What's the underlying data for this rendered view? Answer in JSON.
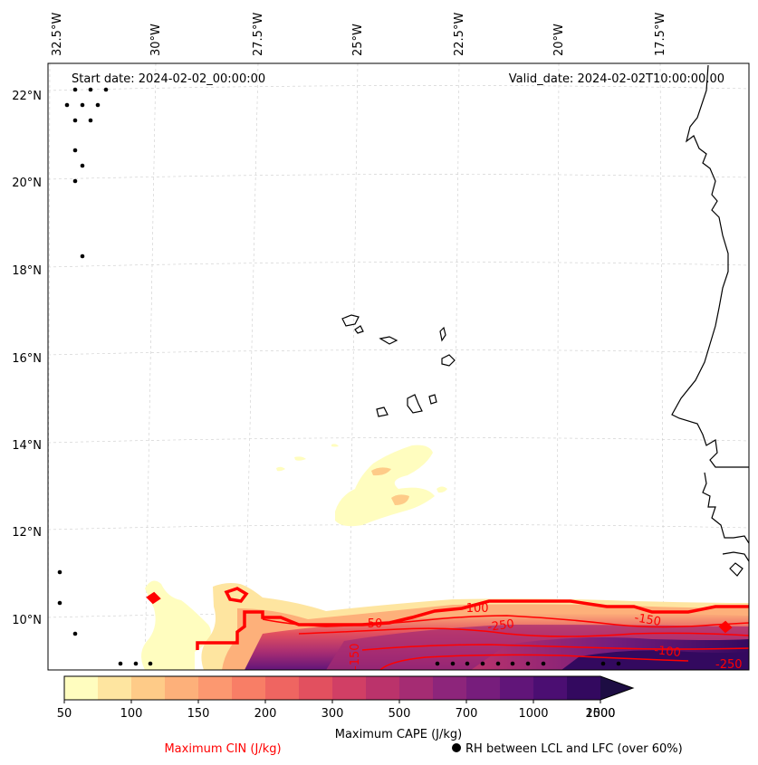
{
  "header": {
    "start_date": "Start date: 2024-02-02_00:00:00",
    "valid_date": "Valid_date: 2024-02-02T10:00:00.00"
  },
  "axes": {
    "lon_labels": [
      "32.5°W",
      "30°W",
      "27.5°W",
      "25°W",
      "22.5°W",
      "20°W",
      "17.5°W"
    ],
    "lat_labels": [
      "22°N",
      "20°N",
      "18°N",
      "16°N",
      "14°N",
      "12°N",
      "10°N"
    ]
  },
  "contour_labels": [
    "-100",
    "-50",
    "-250",
    "-150",
    "-150",
    "-100",
    "-250"
  ],
  "colorbar": {
    "ticks": [
      "50",
      "100",
      "150",
      "200",
      "300",
      "500",
      "700",
      "1000",
      "1500",
      "2000"
    ],
    "colors": [
      "#fffdbf",
      "#fee5a0",
      "#fecb88",
      "#fdb07a",
      "#fc9870",
      "#f87e66",
      "#ef6561",
      "#e2505f",
      "#d13f65",
      "#bb336b",
      "#a52c73",
      "#8d257b",
      "#771d7c",
      "#611579",
      "#4b0e72",
      "#33095f",
      "#1d0d43"
    ],
    "label": "Maximum CAPE (J/kg)"
  },
  "legend": {
    "cin_label": "Maximum CIN (J/kg)",
    "cin_color": "#ff0000",
    "rh_label": "RH between LCL and LFC (over 60%)"
  }
}
